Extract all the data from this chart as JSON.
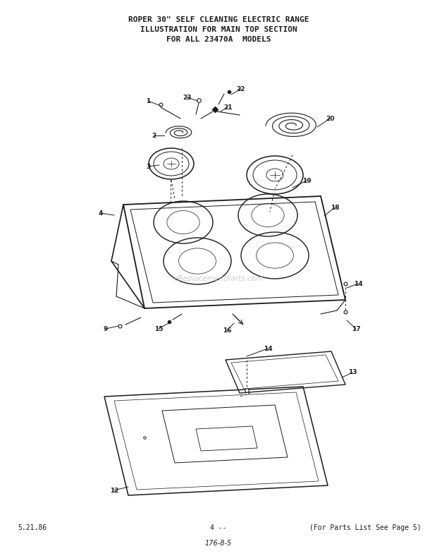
{
  "title_line1": "ROPER 30\" SELF CLEANING ELECTRIC RANGE",
  "title_line2": "ILLUSTRATION FOR MAIN TOP SECTION",
  "title_line3": "FOR ALL 23470A  MODELS",
  "footer_left": "5.21.86",
  "footer_center": "4 --",
  "footer_right": "(For Parts List See Page 5)",
  "footer_bottom": "176-8-5",
  "watermark": "eReplacementParts.com",
  "bg_color": "#ffffff",
  "text_color": "#1a1a1a",
  "line_color": "#1a1a1a"
}
